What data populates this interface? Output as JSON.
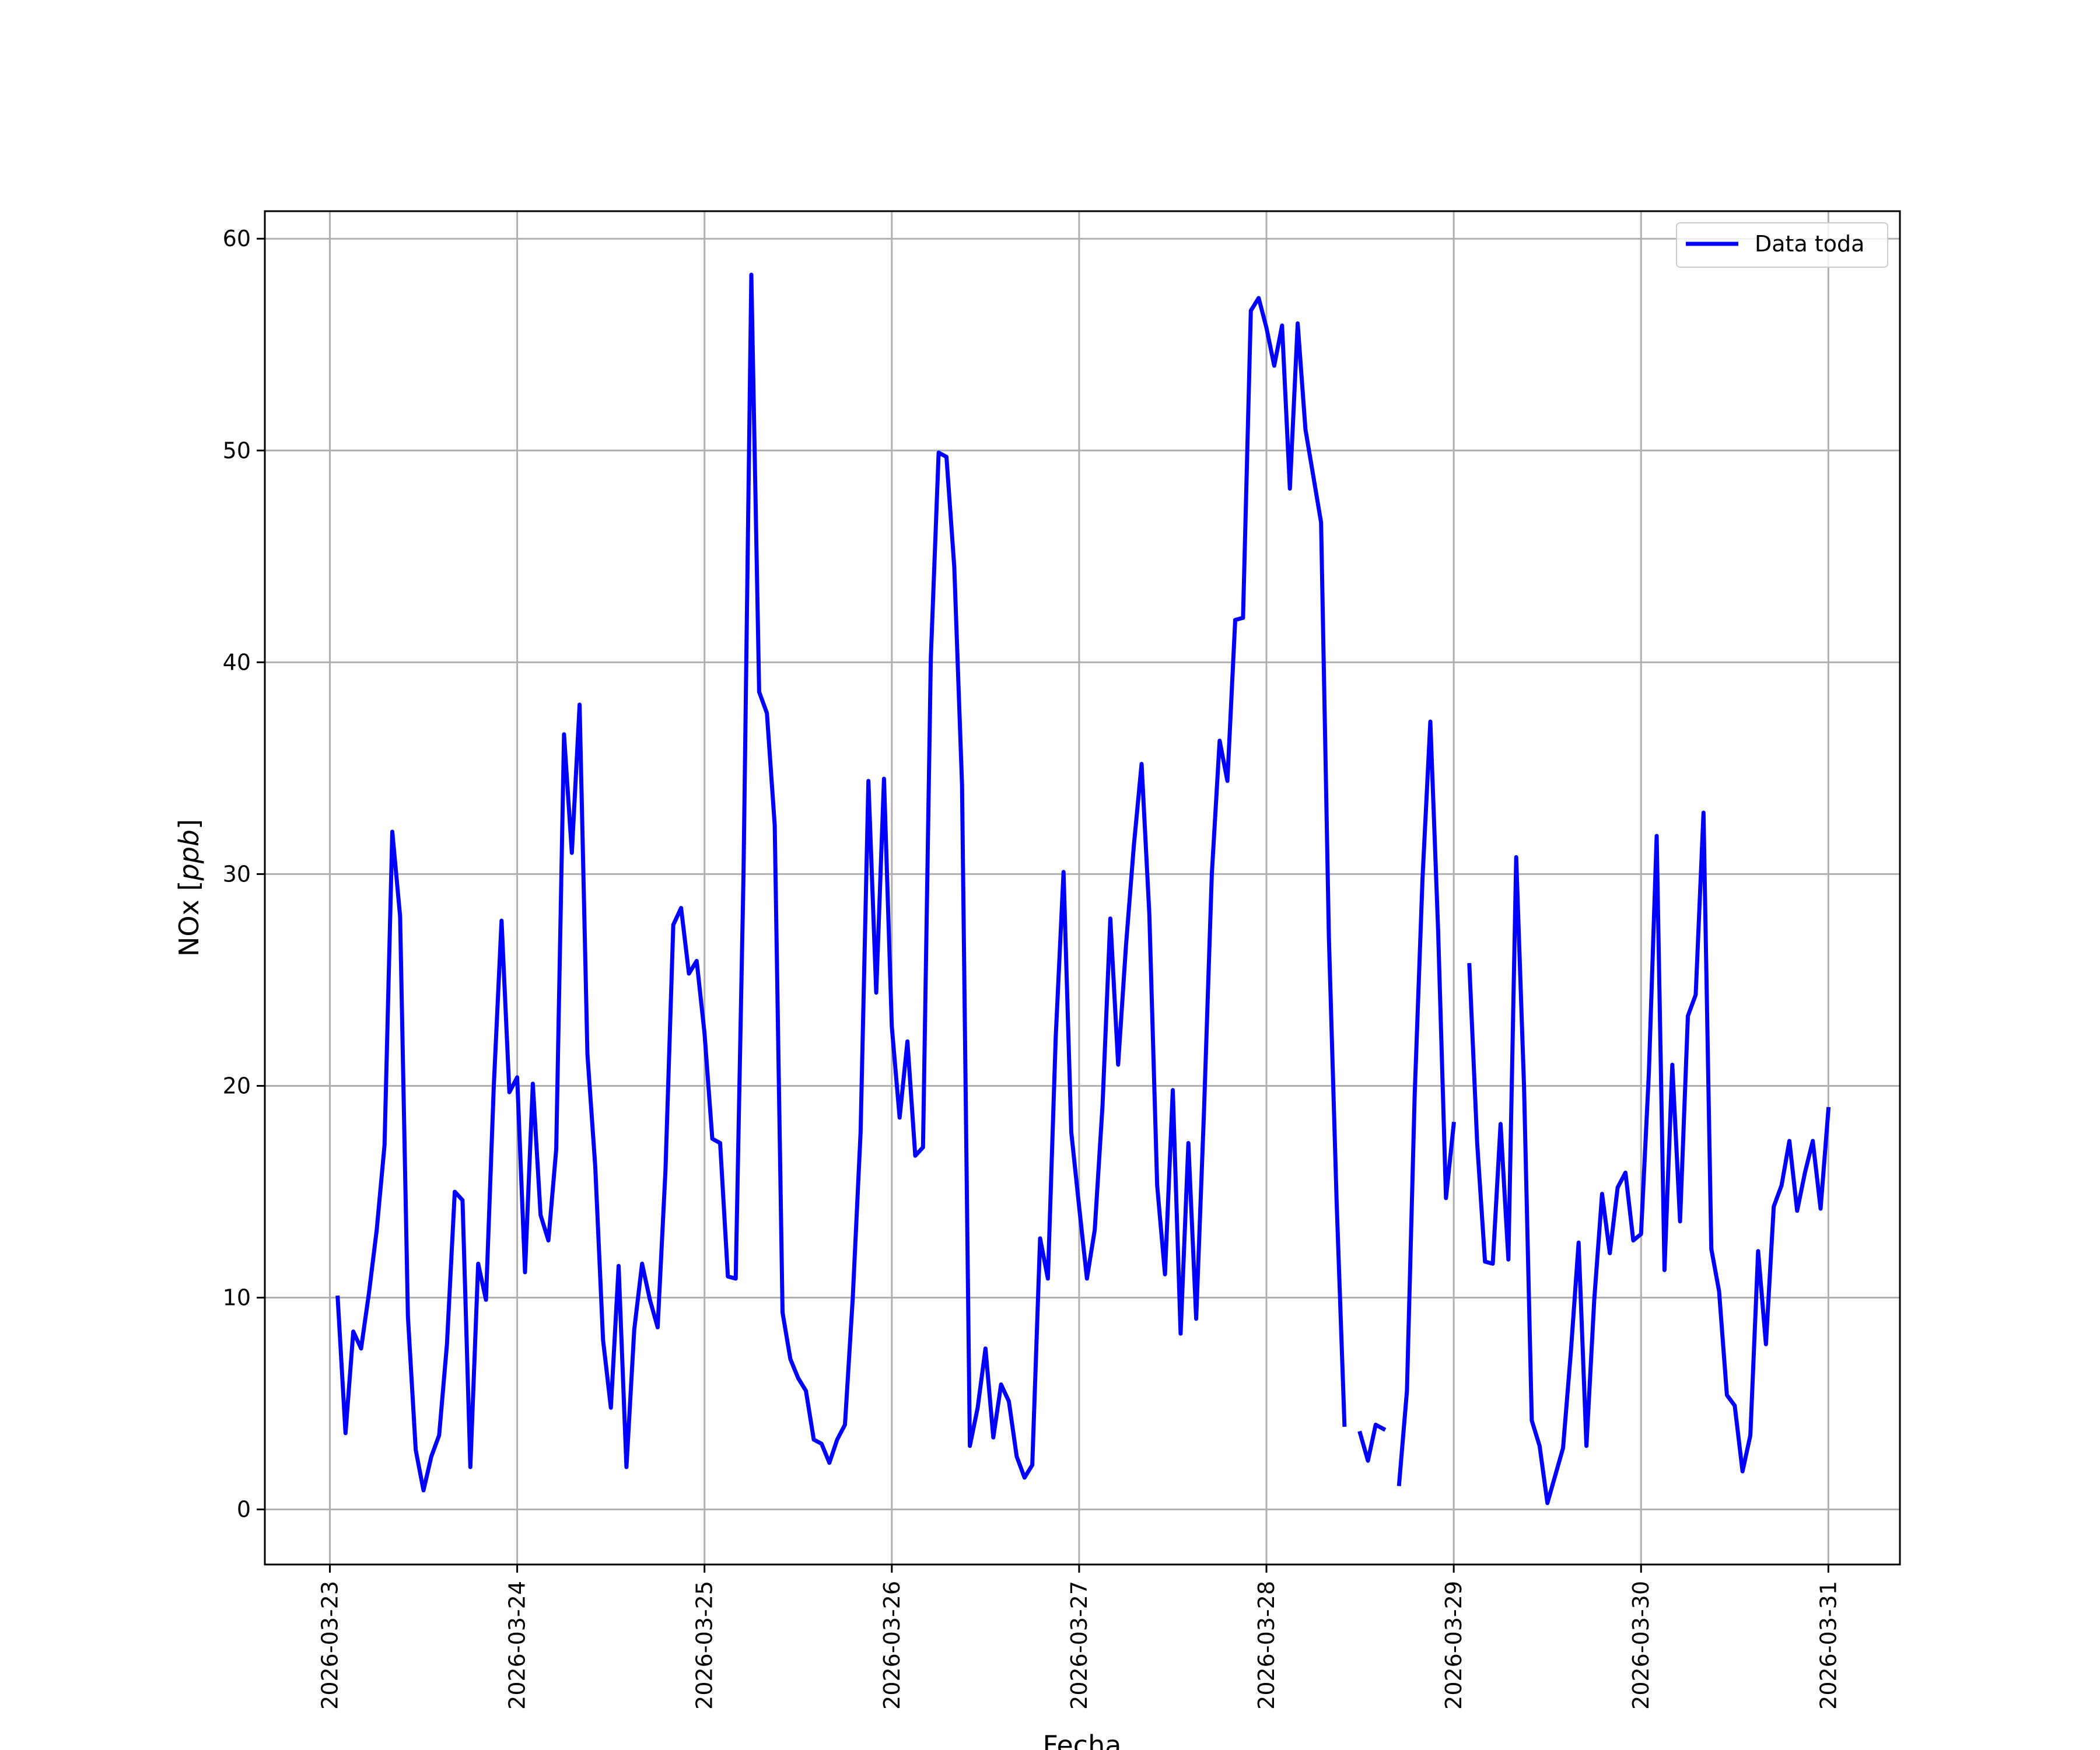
{
  "chart_data": {
    "type": "line",
    "title": "",
    "xlabel": "Fecha",
    "ylabel_main": "NOx ",
    "ylabel_unit": "ppb",
    "xlim": [
      "2026-03-22T15:40",
      "2026-03-31T09:10"
    ],
    "ylim": [
      -2.6,
      61.3
    ],
    "x_ticks": [
      "2026-03-23",
      "2026-03-24",
      "2026-03-25",
      "2026-03-26",
      "2026-03-27",
      "2026-03-28",
      "2026-03-29",
      "2026-03-30",
      "2026-03-31"
    ],
    "y_ticks": [
      0,
      10,
      20,
      30,
      40,
      50,
      60
    ],
    "grid": true,
    "legend_position": "top-right",
    "line_color": "#0000ff",
    "series": [
      {
        "name": "Data toda",
        "segments": [
          [
            [
              "2026-03-23T01:00",
              10.0
            ],
            [
              "2026-03-23T02:00",
              3.6
            ],
            [
              "2026-03-23T03:00",
              8.4
            ],
            [
              "2026-03-23T04:00",
              7.6
            ],
            [
              "2026-03-23T05:00",
              10.2
            ],
            [
              "2026-03-23T06:00",
              13.2
            ],
            [
              "2026-03-23T07:00",
              17.2
            ],
            [
              "2026-03-23T08:00",
              32.0
            ],
            [
              "2026-03-23T09:00",
              28.0
            ],
            [
              "2026-03-23T10:00",
              9.1
            ],
            [
              "2026-03-23T11:00",
              2.8
            ],
            [
              "2026-03-23T12:00",
              0.9
            ],
            [
              "2026-03-23T13:00",
              2.5
            ],
            [
              "2026-03-23T14:00",
              3.5
            ],
            [
              "2026-03-23T15:00",
              7.8
            ],
            [
              "2026-03-23T16:00",
              15.0
            ],
            [
              "2026-03-23T17:00",
              14.6
            ],
            [
              "2026-03-23T18:00",
              2.0
            ],
            [
              "2026-03-23T19:00",
              11.6
            ],
            [
              "2026-03-23T20:00",
              9.9
            ],
            [
              "2026-03-23T21:00",
              20.0
            ],
            [
              "2026-03-23T22:00",
              27.8
            ],
            [
              "2026-03-23T23:00",
              19.7
            ],
            [
              "2026-03-24T00:00",
              20.4
            ],
            [
              "2026-03-24T01:00",
              11.2
            ],
            [
              "2026-03-24T02:00",
              20.1
            ],
            [
              "2026-03-24T03:00",
              13.9
            ],
            [
              "2026-03-24T04:00",
              12.7
            ],
            [
              "2026-03-24T05:00",
              17.0
            ],
            [
              "2026-03-24T06:00",
              36.6
            ],
            [
              "2026-03-24T07:00",
              31.0
            ],
            [
              "2026-03-24T08:00",
              38.0
            ],
            [
              "2026-03-24T09:00",
              21.5
            ],
            [
              "2026-03-24T10:00",
              16.2
            ],
            [
              "2026-03-24T11:00",
              8.0
            ],
            [
              "2026-03-24T12:00",
              4.8
            ],
            [
              "2026-03-24T13:00",
              11.5
            ],
            [
              "2026-03-24T14:00",
              2.0
            ],
            [
              "2026-03-24T15:00",
              8.5
            ],
            [
              "2026-03-24T16:00",
              11.6
            ],
            [
              "2026-03-24T17:00",
              9.9
            ],
            [
              "2026-03-24T18:00",
              8.6
            ],
            [
              "2026-03-24T19:00",
              16.0
            ],
            [
              "2026-03-24T20:00",
              27.6
            ],
            [
              "2026-03-24T21:00",
              28.4
            ],
            [
              "2026-03-24T22:00",
              25.3
            ],
            [
              "2026-03-24T23:00",
              25.9
            ],
            [
              "2026-03-25T00:00",
              22.5
            ],
            [
              "2026-03-25T01:00",
              17.5
            ],
            [
              "2026-03-25T02:00",
              17.3
            ],
            [
              "2026-03-25T03:00",
              11.0
            ],
            [
              "2026-03-25T04:00",
              10.9
            ],
            [
              "2026-03-25T05:00",
              30.0
            ],
            [
              "2026-03-25T06:00",
              58.3
            ],
            [
              "2026-03-25T07:00",
              38.6
            ],
            [
              "2026-03-25T08:00",
              37.6
            ],
            [
              "2026-03-25T09:00",
              32.3
            ],
            [
              "2026-03-25T10:00",
              9.3
            ],
            [
              "2026-03-25T11:00",
              7.1
            ],
            [
              "2026-03-25T12:00",
              6.2
            ],
            [
              "2026-03-25T13:00",
              5.6
            ],
            [
              "2026-03-25T14:00",
              3.3
            ],
            [
              "2026-03-25T15:00",
              3.1
            ],
            [
              "2026-03-25T16:00",
              2.2
            ],
            [
              "2026-03-25T17:00",
              3.3
            ],
            [
              "2026-03-25T18:00",
              4.0
            ],
            [
              "2026-03-25T19:00",
              10.0
            ],
            [
              "2026-03-25T20:00",
              17.8
            ],
            [
              "2026-03-25T21:00",
              34.4
            ],
            [
              "2026-03-25T22:00",
              24.4
            ],
            [
              "2026-03-25T23:00",
              34.5
            ],
            [
              "2026-03-26T00:00",
              22.8
            ],
            [
              "2026-03-26T01:00",
              18.5
            ],
            [
              "2026-03-26T02:00",
              22.1
            ],
            [
              "2026-03-26T03:00",
              16.7
            ],
            [
              "2026-03-26T04:00",
              17.1
            ],
            [
              "2026-03-26T05:00",
              40.2
            ],
            [
              "2026-03-26T06:00",
              49.9
            ],
            [
              "2026-03-26T07:00",
              49.7
            ],
            [
              "2026-03-26T08:00",
              44.5
            ],
            [
              "2026-03-26T09:00",
              34.2
            ],
            [
              "2026-03-26T10:00",
              3.0
            ],
            [
              "2026-03-26T11:00",
              4.8
            ],
            [
              "2026-03-26T12:00",
              7.6
            ],
            [
              "2026-03-26T13:00",
              3.4
            ],
            [
              "2026-03-26T14:00",
              5.9
            ],
            [
              "2026-03-26T15:00",
              5.1
            ],
            [
              "2026-03-26T16:00",
              2.5
            ],
            [
              "2026-03-26T17:00",
              1.5
            ],
            [
              "2026-03-26T18:00",
              2.1
            ],
            [
              "2026-03-26T19:00",
              12.8
            ],
            [
              "2026-03-26T20:00",
              10.9
            ],
            [
              "2026-03-26T21:00",
              22.3
            ],
            [
              "2026-03-26T22:00",
              30.1
            ],
            [
              "2026-03-26T23:00",
              17.8
            ],
            [
              "2026-03-27T00:00",
              14.3
            ],
            [
              "2026-03-27T01:00",
              10.9
            ],
            [
              "2026-03-27T02:00",
              13.2
            ],
            [
              "2026-03-27T03:00",
              19.1
            ],
            [
              "2026-03-27T04:00",
              27.9
            ],
            [
              "2026-03-27T05:00",
              21.0
            ],
            [
              "2026-03-27T06:00",
              26.6
            ],
            [
              "2026-03-27T07:00",
              31.3
            ],
            [
              "2026-03-27T08:00",
              35.2
            ],
            [
              "2026-03-27T09:00",
              28.1
            ],
            [
              "2026-03-27T10:00",
              15.3
            ],
            [
              "2026-03-27T11:00",
              11.1
            ],
            [
              "2026-03-27T12:00",
              19.8
            ],
            [
              "2026-03-27T13:00",
              8.3
            ],
            [
              "2026-03-27T14:00",
              17.3
            ],
            [
              "2026-03-27T15:00",
              9.0
            ],
            [
              "2026-03-27T16:00",
              18.8
            ],
            [
              "2026-03-27T17:00",
              30.0
            ],
            [
              "2026-03-27T18:00",
              36.3
            ],
            [
              "2026-03-27T19:00",
              34.4
            ],
            [
              "2026-03-27T20:00",
              42.0
            ],
            [
              "2026-03-27T21:00",
              42.1
            ],
            [
              "2026-03-27T22:00",
              56.6
            ],
            [
              "2026-03-27T23:00",
              57.2
            ],
            [
              "2026-03-28T00:00",
              55.8
            ],
            [
              "2026-03-28T01:00",
              54.0
            ],
            [
              "2026-03-28T02:00",
              55.9
            ],
            [
              "2026-03-28T03:00",
              48.2
            ],
            [
              "2026-03-28T04:00",
              56.0
            ],
            [
              "2026-03-28T05:00",
              51.0
            ],
            [
              "2026-03-28T06:00",
              48.8
            ],
            [
              "2026-03-28T07:00",
              46.6
            ],
            [
              "2026-03-28T08:00",
              27.0
            ],
            [
              "2026-03-28T09:00",
              14.5
            ],
            [
              "2026-03-28T10:00",
              4.0
            ]
          ],
          [
            [
              "2026-03-28T12:00",
              3.6
            ],
            [
              "2026-03-28T13:00",
              2.3
            ],
            [
              "2026-03-28T14:00",
              4.0
            ],
            [
              "2026-03-28T15:00",
              3.8
            ]
          ],
          [
            [
              "2026-03-28T17:00",
              1.2
            ],
            [
              "2026-03-28T18:00",
              5.6
            ],
            [
              "2026-03-28T19:00",
              19.6
            ],
            [
              "2026-03-28T20:00",
              29.8
            ],
            [
              "2026-03-28T21:00",
              37.2
            ],
            [
              "2026-03-28T22:00",
              27.3
            ],
            [
              "2026-03-28T23:00",
              14.7
            ],
            [
              "2026-03-29T00:00",
              18.2
            ]
          ],
          [
            [
              "2026-03-29T02:00",
              25.7
            ],
            [
              "2026-03-29T03:00",
              17.3
            ],
            [
              "2026-03-29T04:00",
              11.7
            ],
            [
              "2026-03-29T05:00",
              11.6
            ],
            [
              "2026-03-29T06:00",
              18.2
            ],
            [
              "2026-03-29T07:00",
              11.8
            ],
            [
              "2026-03-29T08:00",
              30.8
            ],
            [
              "2026-03-29T09:00",
              20.0
            ],
            [
              "2026-03-29T10:00",
              4.2
            ],
            [
              "2026-03-29T11:00",
              3.0
            ],
            [
              "2026-03-29T12:00",
              0.3
            ],
            [
              "2026-03-29T13:00",
              1.6
            ],
            [
              "2026-03-29T14:00",
              2.9
            ],
            [
              "2026-03-29T15:00",
              7.4
            ],
            [
              "2026-03-29T16:00",
              12.6
            ],
            [
              "2026-03-29T17:00",
              3.0
            ],
            [
              "2026-03-29T18:00",
              9.9
            ],
            [
              "2026-03-29T19:00",
              14.9
            ],
            [
              "2026-03-29T20:00",
              12.1
            ],
            [
              "2026-03-29T21:00",
              15.2
            ],
            [
              "2026-03-29T22:00",
              15.9
            ],
            [
              "2026-03-29T23:00",
              12.7
            ],
            [
              "2026-03-30T00:00",
              13.0
            ],
            [
              "2026-03-30T01:00",
              20.6
            ],
            [
              "2026-03-30T02:00",
              31.8
            ],
            [
              "2026-03-30T03:00",
              11.3
            ],
            [
              "2026-03-30T04:00",
              21.0
            ],
            [
              "2026-03-30T05:00",
              13.6
            ],
            [
              "2026-03-30T06:00",
              23.3
            ],
            [
              "2026-03-30T07:00",
              24.3
            ],
            [
              "2026-03-30T08:00",
              32.9
            ],
            [
              "2026-03-30T09:00",
              12.3
            ],
            [
              "2026-03-30T10:00",
              10.3
            ],
            [
              "2026-03-30T11:00",
              5.4
            ],
            [
              "2026-03-30T12:00",
              4.9
            ],
            [
              "2026-03-30T13:00",
              1.8
            ],
            [
              "2026-03-30T14:00",
              3.5
            ],
            [
              "2026-03-30T15:00",
              12.2
            ],
            [
              "2026-03-30T16:00",
              7.8
            ],
            [
              "2026-03-30T17:00",
              14.3
            ],
            [
              "2026-03-30T18:00",
              15.3
            ],
            [
              "2026-03-30T19:00",
              17.4
            ],
            [
              "2026-03-30T20:00",
              14.1
            ],
            [
              "2026-03-30T21:00",
              15.9
            ],
            [
              "2026-03-30T22:00",
              17.4
            ],
            [
              "2026-03-30T23:00",
              14.2
            ],
            [
              "2026-03-31T00:00",
              18.9
            ]
          ]
        ]
      }
    ]
  }
}
